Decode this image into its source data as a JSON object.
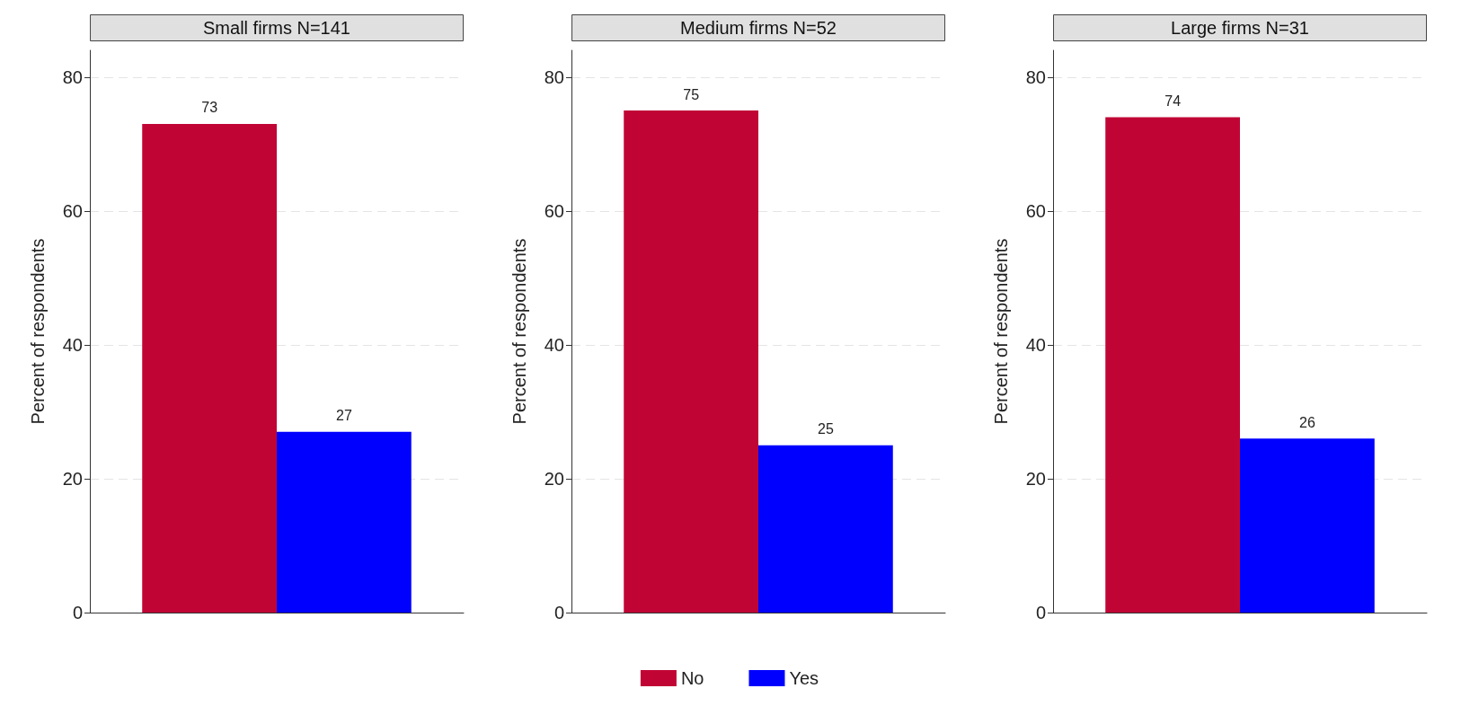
{
  "chart_data": [
    {
      "type": "bar",
      "title": "Small firms N=141",
      "ylabel": "Percent of respondents",
      "categories": [
        null
      ],
      "series": [
        {
          "color": "#c00535",
          "values": [
            73
          ]
        },
        {
          "color": "#0000ff",
          "values": [
            27
          ]
        }
      ],
      "ylim": [
        0,
        84
      ],
      "yticks": [
        0,
        20,
        40,
        60,
        80
      ],
      "grid": "y",
      "data_labels": true
    },
    {
      "type": "bar",
      "title": "Medium firms N=52",
      "ylabel": "Percent of respondents",
      "categories": [
        null
      ],
      "series": [
        {
          "name": "No",
          "color": "#c00535",
          "values": [
            75
          ]
        },
        {
          "name": "Yes",
          "color": "#0000ff",
          "values": [
            25
          ]
        }
      ],
      "ylim": [
        0,
        84
      ],
      "yticks": [
        0,
        20,
        40,
        60,
        80
      ],
      "grid": "y",
      "data_labels": true,
      "legend": "bottom"
    },
    {
      "type": "bar",
      "title": "Large firms N=31",
      "ylabel": "Percent of respondents",
      "categories": [
        null
      ],
      "series": [
        {
          "color": "#c00535",
          "values": [
            74
          ]
        },
        {
          "color": "#0000ff",
          "values": [
            26
          ]
        }
      ],
      "ylim": [
        0,
        84
      ],
      "yticks": [
        0,
        20,
        40,
        60,
        80
      ],
      "grid": "y",
      "data_labels": true
    }
  ]
}
